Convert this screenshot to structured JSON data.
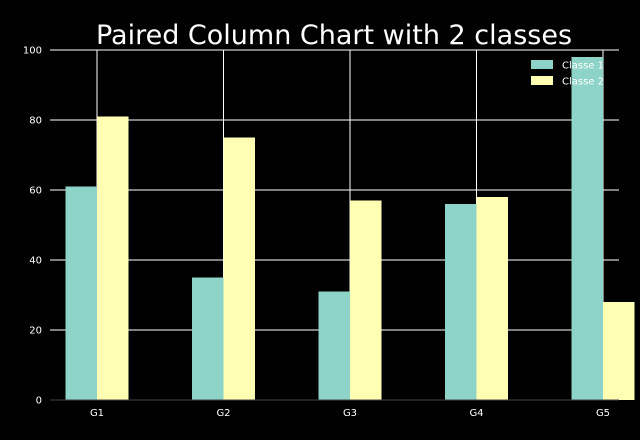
{
  "chart_data": {
    "type": "bar",
    "title": "Paired Column Chart with 2 classes",
    "xlabel": "",
    "ylabel": "",
    "categories": [
      "G1",
      "G2",
      "G3",
      "G4",
      "G5"
    ],
    "series": [
      {
        "name": "Classe 1",
        "values": [
          61,
          35,
          31,
          56,
          98
        ],
        "color": "#8dd3c7"
      },
      {
        "name": "Classe 2",
        "values": [
          81,
          75,
          57,
          58,
          28
        ],
        "color": "#ffffb3"
      }
    ],
    "ylim": [
      0,
      100
    ],
    "yticks": [
      0,
      20,
      40,
      60,
      80,
      100
    ],
    "grid": true,
    "legend_position": "top-right",
    "background_color": "#000000",
    "text_color": "#ffffff"
  }
}
